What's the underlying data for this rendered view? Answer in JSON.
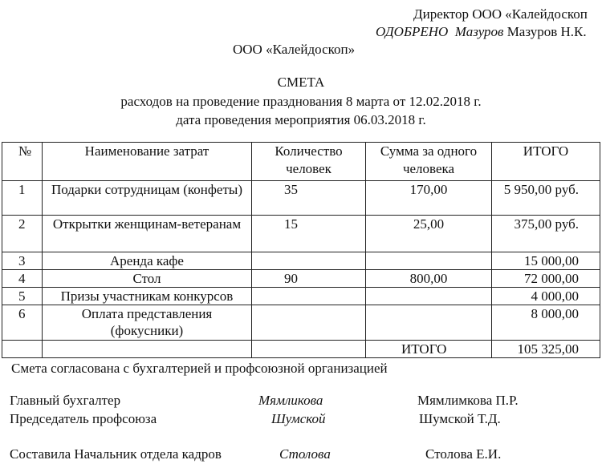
{
  "header": {
    "director": "Директор ООО «Калейдоскоп",
    "approved_label": "ОДОБРЕНО",
    "approved_signature": "Мазуров",
    "approved_name": "Мазуров Н.К.",
    "org": "ООО «Калейдоскоп»"
  },
  "title": {
    "heading": "СМЕТА",
    "line1": "расходов на проведение празднования 8 марта от 12.02.2018 г.",
    "line2": "дата проведения мероприятия 06.03.2018 г."
  },
  "table": {
    "columns": [
      "№",
      "Наименование затрат",
      "Количество человек",
      "Сумма за одного человека",
      "ИТОГО"
    ],
    "rows": [
      {
        "num": "1",
        "name": "Подарки сотрудницам (конфеты)",
        "qty": "35",
        "price": "170,00",
        "total": "5 950,00 руб."
      },
      {
        "num": "2",
        "name": "Открытки женщинам-ветеранам",
        "qty": "15",
        "price": "25,00",
        "total": "375,00 руб."
      },
      {
        "num": "3",
        "name": "Аренда кафе",
        "total": "15 000,00"
      },
      {
        "num": "4",
        "name": "Стол",
        "qty": "90",
        "price": "800,00",
        "total": "72 000,00"
      },
      {
        "num": "5",
        "name": "Призы участникам конкурсов",
        "total": "4 000,00"
      },
      {
        "num": "6",
        "name": "Оплата представления (фокусники)",
        "total": "8 000,00"
      }
    ],
    "total": {
      "label": "ИТОГО",
      "value": "105 325,00"
    }
  },
  "footer": {
    "agreement": "Смета согласована с бухгалтерией и профсоюзной организацией",
    "signatures": [
      {
        "role": "Главный бухгалтер",
        "signature": "Мямликова",
        "name": "Мямлимкова П.Р."
      },
      {
        "role": "Председатель профсоюза",
        "signature": "Шумской",
        "name": "Шумской Т.Д."
      },
      {
        "role": "Составила Начальник отдела кадров",
        "signature": "Столова",
        "name": "Столова Е.И."
      }
    ]
  }
}
